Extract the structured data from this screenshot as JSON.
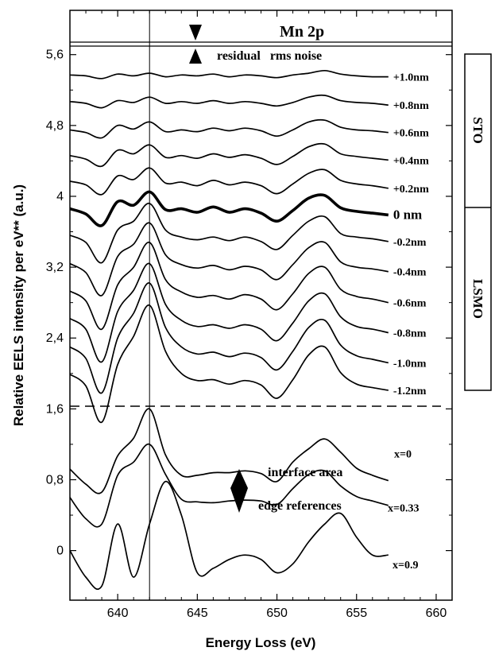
{
  "chart_data": {
    "type": "line",
    "title": "Mn 2p",
    "xlabel": "Energy Loss (eV)",
    "ylabel": "Relative EELS intensity per eV** (a.u.)",
    "xlim": [
      637,
      661
    ],
    "ylim": [
      -0.56,
      6.1
    ],
    "x_ticks": [
      640,
      645,
      650,
      655,
      660
    ],
    "y_ticks": [
      0,
      0.8,
      1.6,
      2.4,
      3.2,
      4,
      4.8,
      5.6
    ],
    "y_tick_labels": [
      "0",
      "0,8",
      "1,6",
      "2,4",
      "3,2",
      "4",
      "4,8",
      "5,6"
    ],
    "grid": false,
    "reference_line_x": 642,
    "separator_y": 1.63,
    "annotations": {
      "noise_label": "residual   rms noise",
      "interface_label": "interface area",
      "edge_label": "edge references"
    },
    "side_panel": {
      "top_label": "STO",
      "bottom_label": "LSMO"
    },
    "series": [
      {
        "name": "+1.0nm",
        "x": [
          637,
          638,
          639,
          640,
          641,
          642,
          643,
          644,
          645,
          646,
          647,
          648,
          649,
          650,
          651,
          652,
          653,
          654,
          655,
          656,
          657
        ],
        "values": [
          5.37,
          5.36,
          5.33,
          5.38,
          5.36,
          5.39,
          5.35,
          5.37,
          5.36,
          5.38,
          5.35,
          5.37,
          5.36,
          5.34,
          5.37,
          5.39,
          5.42,
          5.38,
          5.36,
          5.35,
          5.35
        ]
      },
      {
        "name": "+0.8nm",
        "x": [
          637,
          638,
          639,
          640,
          641,
          642,
          643,
          644,
          645,
          646,
          647,
          648,
          649,
          650,
          651,
          652,
          653,
          654,
          655,
          656,
          657
        ],
        "values": [
          5.07,
          5.05,
          5.0,
          5.08,
          5.06,
          5.12,
          5.05,
          5.07,
          5.05,
          5.08,
          5.05,
          5.07,
          5.05,
          5.02,
          5.06,
          5.12,
          5.14,
          5.08,
          5.06,
          5.05,
          5.03
        ]
      },
      {
        "name": "+0.6nm",
        "x": [
          637,
          638,
          639,
          640,
          641,
          642,
          643,
          644,
          645,
          646,
          647,
          648,
          649,
          650,
          651,
          652,
          653,
          654,
          655,
          656,
          657
        ],
        "values": [
          4.75,
          4.72,
          4.66,
          4.8,
          4.76,
          4.84,
          4.73,
          4.75,
          4.73,
          4.77,
          4.74,
          4.77,
          4.74,
          4.68,
          4.75,
          4.84,
          4.86,
          4.78,
          4.75,
          4.74,
          4.72
        ]
      },
      {
        "name": "+0.4nm",
        "x": [
          637,
          638,
          639,
          640,
          641,
          642,
          643,
          644,
          645,
          646,
          647,
          648,
          649,
          650,
          651,
          652,
          653,
          654,
          655,
          656,
          657
        ],
        "values": [
          4.46,
          4.42,
          4.34,
          4.52,
          4.48,
          4.58,
          4.44,
          4.46,
          4.43,
          4.48,
          4.44,
          4.47,
          4.43,
          4.36,
          4.45,
          4.56,
          4.59,
          4.48,
          4.45,
          4.43,
          4.41
        ]
      },
      {
        "name": "+0.2nm",
        "x": [
          637,
          638,
          639,
          640,
          641,
          642,
          643,
          644,
          645,
          646,
          647,
          648,
          649,
          650,
          651,
          652,
          653,
          654,
          655,
          656,
          657
        ],
        "values": [
          4.17,
          4.13,
          4.02,
          4.23,
          4.19,
          4.32,
          4.15,
          4.16,
          4.12,
          4.18,
          4.13,
          4.16,
          4.12,
          4.03,
          4.14,
          4.26,
          4.3,
          4.18,
          4.14,
          4.12,
          4.09
        ]
      },
      {
        "name": "0 nm",
        "x": [
          637,
          638,
          639,
          640,
          641,
          642,
          643,
          644,
          645,
          646,
          647,
          648,
          649,
          650,
          651,
          652,
          653,
          654,
          655,
          656,
          657
        ],
        "values": [
          3.86,
          3.8,
          3.67,
          3.94,
          3.9,
          4.05,
          3.85,
          3.86,
          3.82,
          3.88,
          3.82,
          3.86,
          3.81,
          3.72,
          3.84,
          3.98,
          4.01,
          3.87,
          3.83,
          3.81,
          3.79
        ]
      },
      {
        "name": "-0.2nm",
        "x": [
          637,
          638,
          639,
          640,
          641,
          642,
          643,
          644,
          645,
          646,
          647,
          648,
          649,
          650,
          651,
          652,
          653,
          654,
          655,
          656,
          657
        ],
        "values": [
          3.56,
          3.48,
          3.25,
          3.62,
          3.72,
          3.92,
          3.62,
          3.54,
          3.51,
          3.54,
          3.5,
          3.54,
          3.49,
          3.4,
          3.56,
          3.72,
          3.77,
          3.58,
          3.54,
          3.52,
          3.49
        ]
      },
      {
        "name": "-0.4nm",
        "x": [
          637,
          638,
          639,
          640,
          641,
          642,
          643,
          644,
          645,
          646,
          647,
          648,
          649,
          650,
          651,
          652,
          653,
          654,
          655,
          656,
          657
        ],
        "values": [
          3.24,
          3.14,
          2.88,
          3.32,
          3.46,
          3.7,
          3.34,
          3.23,
          3.19,
          3.22,
          3.17,
          3.21,
          3.17,
          3.06,
          3.23,
          3.42,
          3.48,
          3.26,
          3.2,
          3.18,
          3.15
        ]
      },
      {
        "name": "-0.6nm",
        "x": [
          637,
          638,
          639,
          640,
          641,
          642,
          643,
          644,
          645,
          646,
          647,
          648,
          649,
          650,
          651,
          652,
          653,
          654,
          655,
          656,
          657
        ],
        "values": [
          2.93,
          2.82,
          2.5,
          3.0,
          3.2,
          3.48,
          3.06,
          2.92,
          2.86,
          2.88,
          2.84,
          2.89,
          2.84,
          2.72,
          2.9,
          3.13,
          3.2,
          2.95,
          2.87,
          2.84,
          2.8
        ]
      },
      {
        "name": "-0.8nm",
        "x": [
          637,
          638,
          639,
          640,
          641,
          642,
          643,
          644,
          645,
          646,
          647,
          648,
          649,
          650,
          651,
          652,
          653,
          654,
          655,
          656,
          657
        ],
        "values": [
          2.62,
          2.5,
          2.13,
          2.7,
          2.94,
          3.24,
          2.78,
          2.6,
          2.53,
          2.55,
          2.51,
          2.55,
          2.5,
          2.37,
          2.57,
          2.82,
          2.9,
          2.64,
          2.53,
          2.5,
          2.46
        ]
      },
      {
        "name": "-1.0nm",
        "x": [
          637,
          638,
          639,
          640,
          641,
          642,
          643,
          644,
          645,
          646,
          647,
          648,
          649,
          650,
          651,
          652,
          653,
          654,
          655,
          656,
          657
        ],
        "values": [
          2.3,
          2.17,
          1.78,
          2.4,
          2.68,
          3.02,
          2.52,
          2.3,
          2.22,
          2.24,
          2.19,
          2.23,
          2.18,
          2.04,
          2.25,
          2.52,
          2.6,
          2.32,
          2.2,
          2.16,
          2.12
        ]
      },
      {
        "name": "-1.2nm",
        "x": [
          637,
          638,
          639,
          640,
          641,
          642,
          643,
          644,
          645,
          646,
          647,
          648,
          649,
          650,
          651,
          652,
          653,
          654,
          655,
          656,
          657
        ],
        "values": [
          1.99,
          1.86,
          1.45,
          2.1,
          2.42,
          2.77,
          2.25,
          2.0,
          1.92,
          1.93,
          1.88,
          1.92,
          1.87,
          1.72,
          1.93,
          2.21,
          2.3,
          2.01,
          1.88,
          1.84,
          1.81
        ]
      },
      {
        "name": "x=0",
        "x": [
          637,
          638,
          639,
          640,
          641,
          642,
          643,
          644,
          645,
          646,
          647,
          648,
          649,
          650,
          651,
          652,
          653,
          654,
          655,
          656,
          657
        ],
        "values": [
          0.92,
          0.75,
          0.66,
          1.07,
          1.27,
          1.6,
          1.08,
          0.85,
          0.85,
          0.88,
          0.88,
          0.9,
          0.87,
          0.78,
          1.0,
          1.15,
          1.26,
          1.11,
          0.93,
          0.85,
          0.79
        ]
      },
      {
        "name": "x=0.33",
        "x": [
          637,
          638,
          639,
          640,
          641,
          642,
          643,
          644,
          645,
          646,
          647,
          648,
          649,
          650,
          651,
          652,
          653,
          654,
          655,
          656,
          657
        ],
        "values": [
          0.6,
          0.36,
          0.3,
          0.85,
          1.0,
          1.2,
          0.86,
          0.58,
          0.55,
          0.54,
          0.56,
          0.57,
          0.56,
          0.52,
          0.7,
          0.86,
          0.9,
          0.73,
          0.61,
          0.56,
          0.51
        ]
      },
      {
        "name": "x=0.9",
        "x": [
          637,
          638,
          639,
          640,
          641,
          642,
          643,
          644,
          645,
          646,
          647,
          648,
          649,
          650,
          651,
          652,
          653,
          654,
          655,
          656,
          657
        ],
        "values": [
          0.0,
          -0.3,
          -0.4,
          0.3,
          -0.3,
          0.3,
          0.78,
          0.4,
          -0.25,
          -0.2,
          -0.1,
          -0.05,
          -0.1,
          -0.25,
          -0.15,
          0.1,
          0.3,
          0.42,
          0.15,
          -0.05,
          -0.05
        ]
      }
    ]
  }
}
